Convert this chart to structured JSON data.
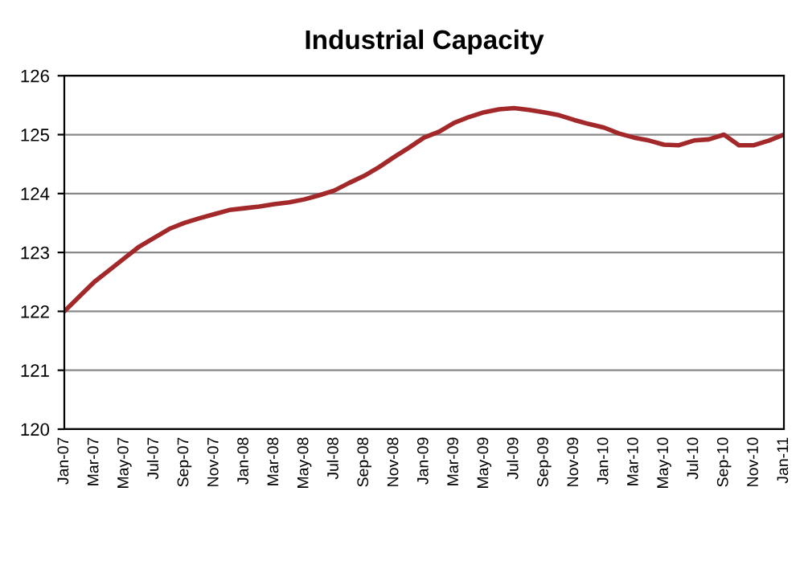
{
  "chart_data": {
    "type": "line",
    "title": "Industrial Capacity",
    "categories": [
      "Jan-07",
      null,
      "Mar-07",
      null,
      "May-07",
      null,
      "Jul-07",
      null,
      "Sep-07",
      null,
      "Nov-07",
      null,
      "Jan-08",
      null,
      "Mar-08",
      null,
      "May-08",
      null,
      "Jul-08",
      null,
      "Sep-08",
      null,
      "Nov-08",
      null,
      "Jan-09",
      null,
      "Mar-09",
      null,
      "May-09",
      null,
      "Jul-09",
      null,
      "Sep-09",
      null,
      "Nov-09",
      null,
      "Jan-10",
      null,
      "Mar-10",
      null,
      "May-10",
      null,
      "Jul-10",
      null,
      "Sep-10",
      null,
      "Nov-10",
      null,
      "Jan-11"
    ],
    "series": [
      {
        "color": "#a3282a",
        "values": [
          122.0,
          122.25,
          122.5,
          122.7,
          122.9,
          123.1,
          123.25,
          123.4,
          123.5,
          123.58,
          123.65,
          123.72,
          123.75,
          123.78,
          123.82,
          123.85,
          123.9,
          123.97,
          124.05,
          124.18,
          124.3,
          124.45,
          124.62,
          124.78,
          124.95,
          125.05,
          125.2,
          125.3,
          125.38,
          125.43,
          125.45,
          125.42,
          125.38,
          125.33,
          125.25,
          125.18,
          125.12,
          125.02,
          124.95,
          124.9,
          124.83,
          124.82,
          124.9,
          124.92,
          125.0,
          124.82,
          124.82,
          124.9,
          125.0
        ]
      }
    ],
    "ylim": [
      120,
      126
    ],
    "yticks": [
      120,
      121,
      122,
      123,
      124,
      125,
      126
    ],
    "grid": "y",
    "marker": "none",
    "line_style": "solid"
  }
}
